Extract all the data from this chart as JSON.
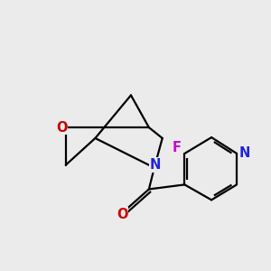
{
  "bg_color": "#ebebeb",
  "bond_color": "#000000",
  "O_color": "#cc0000",
  "N_color": "#2222dd",
  "F_color": "#cc00cc",
  "line_width": 1.6,
  "font_size": 10.5,
  "figsize": [
    3.0,
    3.0
  ],
  "dpi": 100,
  "xlim": [
    0,
    10
  ],
  "ylim": [
    0,
    10
  ]
}
